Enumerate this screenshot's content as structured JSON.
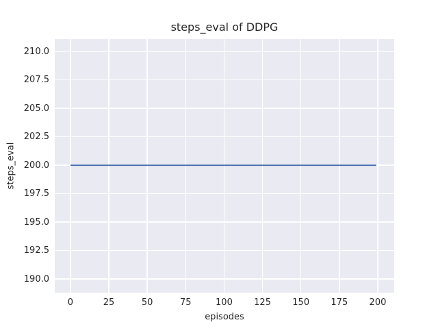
{
  "figure": {
    "background": "#ffffff",
    "plot_background": "#eaeaf2",
    "grid_color": "#ffffff",
    "text_color": "#262626"
  },
  "chart_data": {
    "type": "line",
    "title": "steps_eval of DDPG",
    "xlabel": "episodes",
    "ylabel": "steps_eval",
    "x_ticks": [
      0,
      25,
      50,
      75,
      100,
      125,
      150,
      175,
      200
    ],
    "y_ticks": [
      190.0,
      192.5,
      195.0,
      197.5,
      200.0,
      202.5,
      205.0,
      207.5,
      210.0
    ],
    "y_tick_labels": [
      "190.0",
      "192.5",
      "195.0",
      "197.5",
      "200.0",
      "202.5",
      "205.0",
      "207.5",
      "210.0"
    ],
    "xlim": [
      -10.2,
      210.7
    ],
    "ylim": [
      188.8,
      211.1
    ],
    "grid": true,
    "legend_position": "none",
    "series": [
      {
        "name": "DDPG",
        "color": "#4c72b0",
        "line_width": 2,
        "x": [
          0,
          199
        ],
        "y": [
          200,
          200
        ]
      }
    ]
  }
}
